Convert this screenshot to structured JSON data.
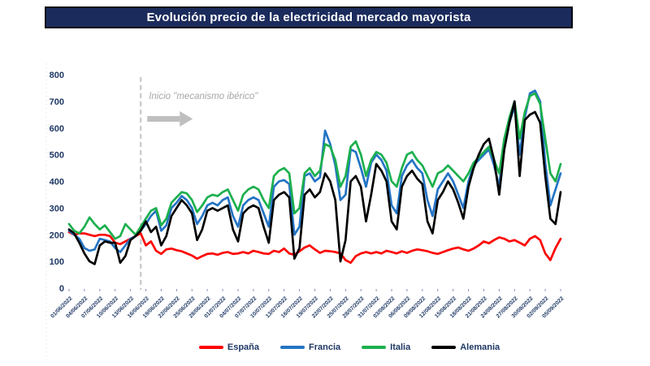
{
  "title": "Evolución precio de la electricidad mercado mayorista",
  "annotation": {
    "text": "Inicio \"mecanismo ibérico\"",
    "at_date": "15/06/2022"
  },
  "colors": {
    "title_bg": "#1b2b5c",
    "title_text": "#ffffff",
    "axis_text": "#1f3864",
    "tick_mark": "#8496b8",
    "annotation_text": "#a6a6a6",
    "arrow": "#bfbfbf",
    "dashed_line": "#c9c9c9",
    "left_guide": "#e2e6f0",
    "espana": "#fe0000",
    "francia": "#2474c4",
    "italia": "#1cb04e",
    "alemania": "#000000"
  },
  "chart_data": {
    "type": "line",
    "title": "Evolución precio de la electricidad mercado mayorista",
    "xlabel": "",
    "ylabel": "",
    "ylim": [
      0,
      800
    ],
    "yticks": [
      0,
      100,
      200,
      300,
      400,
      500,
      600,
      700,
      800
    ],
    "grid": false,
    "legend_position": "bottom",
    "x_tick_labels": [
      "01/06/2022",
      "04/06/2022",
      "07/06/2022",
      "10/06/2022",
      "13/06/2022",
      "16/06/2022",
      "19/06/2022",
      "22/06/2022",
      "25/06/2022",
      "28/06/2022",
      "01/07/2022",
      "04/07/2022",
      "07/07/2022",
      "10/07/2022",
      "13/07/2022",
      "16/07/2022",
      "19/07/2022",
      "22/07/2022",
      "25/07/2022",
      "28/07/2022",
      "31/07/2022",
      "03/08/2022",
      "06/08/2022",
      "09/08/2022",
      "12/08/2022",
      "15/08/2022",
      "18/08/2022",
      "21/08/2022",
      "24/08/2022",
      "27/08/2022",
      "30/08/2022",
      "02/09/2022",
      "05/09/2022"
    ],
    "x_dates": [
      "01/06/2022",
      "02/06/2022",
      "03/06/2022",
      "04/06/2022",
      "05/06/2022",
      "06/06/2022",
      "07/06/2022",
      "08/06/2022",
      "09/06/2022",
      "10/06/2022",
      "11/06/2022",
      "12/06/2022",
      "13/06/2022",
      "14/06/2022",
      "15/06/2022",
      "16/06/2022",
      "17/06/2022",
      "18/06/2022",
      "19/06/2022",
      "20/06/2022",
      "21/06/2022",
      "22/06/2022",
      "23/06/2022",
      "24/06/2022",
      "25/06/2022",
      "26/06/2022",
      "27/06/2022",
      "28/06/2022",
      "29/06/2022",
      "30/06/2022",
      "01/07/2022",
      "02/07/2022",
      "03/07/2022",
      "04/07/2022",
      "05/07/2022",
      "06/07/2022",
      "07/07/2022",
      "08/07/2022",
      "09/07/2022",
      "10/07/2022",
      "11/07/2022",
      "12/07/2022",
      "13/07/2022",
      "14/07/2022",
      "15/07/2022",
      "16/07/2022",
      "17/07/2022",
      "18/07/2022",
      "19/07/2022",
      "20/07/2022",
      "21/07/2022",
      "22/07/2022",
      "23/07/2022",
      "24/07/2022",
      "25/07/2022",
      "26/07/2022",
      "27/07/2022",
      "28/07/2022",
      "29/07/2022",
      "30/07/2022",
      "31/07/2022",
      "01/08/2022",
      "02/08/2022",
      "03/08/2022",
      "04/08/2022",
      "05/08/2022",
      "06/08/2022",
      "07/08/2022",
      "08/08/2022",
      "09/08/2022",
      "10/08/2022",
      "11/08/2022",
      "12/08/2022",
      "13/08/2022",
      "14/08/2022",
      "15/08/2022",
      "16/08/2022",
      "17/08/2022",
      "18/08/2022",
      "19/08/2022",
      "20/08/2022",
      "21/08/2022",
      "22/08/2022",
      "23/08/2022",
      "24/08/2022",
      "25/08/2022",
      "26/08/2022",
      "27/08/2022",
      "28/08/2022",
      "29/08/2022",
      "30/08/2022",
      "31/08/2022",
      "01/09/2022",
      "02/09/2022",
      "03/09/2022",
      "04/09/2022",
      "05/09/2022"
    ],
    "series": [
      {
        "name": "España",
        "color_key": "espana",
        "values": [
          210,
          200,
          205,
          205,
          200,
          195,
          200,
          200,
          195,
          170,
          165,
          175,
          185,
          195,
          205,
          160,
          175,
          140,
          128,
          145,
          148,
          142,
          138,
          130,
          122,
          110,
          120,
          128,
          130,
          125,
          132,
          135,
          128,
          130,
          135,
          130,
          140,
          135,
          130,
          128,
          140,
          135,
          148,
          130,
          125,
          138,
          152,
          160,
          145,
          132,
          140,
          138,
          135,
          130,
          105,
          95,
          120,
          130,
          135,
          130,
          135,
          130,
          140,
          135,
          130,
          138,
          132,
          140,
          145,
          142,
          138,
          132,
          128,
          135,
          142,
          148,
          152,
          145,
          140,
          148,
          160,
          175,
          168,
          180,
          190,
          185,
          175,
          180,
          170,
          160,
          185,
          195,
          180,
          130,
          105,
          150,
          185
        ]
      },
      {
        "name": "Francia",
        "color_key": "francia",
        "values": [
          215,
          200,
          185,
          150,
          140,
          145,
          185,
          180,
          175,
          150,
          135,
          160,
          185,
          195,
          215,
          240,
          270,
          290,
          215,
          235,
          300,
          320,
          345,
          330,
          300,
          240,
          270,
          310,
          320,
          310,
          330,
          340,
          270,
          230,
          310,
          330,
          340,
          330,
          280,
          230,
          380,
          400,
          405,
          390,
          200,
          230,
          420,
          430,
          400,
          415,
          590,
          540,
          460,
          330,
          350,
          520,
          510,
          450,
          380,
          470,
          500,
          480,
          440,
          310,
          280,
          420,
          460,
          480,
          450,
          430,
          330,
          270,
          370,
          400,
          430,
          400,
          350,
          300,
          400,
          460,
          480,
          500,
          520,
          460,
          380,
          560,
          620,
          680,
          500,
          640,
          730,
          740,
          700,
          470,
          310,
          370,
          430
        ]
      },
      {
        "name": "Italia",
        "color_key": "italia",
        "values": [
          240,
          215,
          205,
          230,
          265,
          240,
          220,
          235,
          210,
          185,
          195,
          240,
          220,
          200,
          230,
          260,
          290,
          300,
          235,
          260,
          320,
          340,
          360,
          355,
          330,
          285,
          310,
          340,
          350,
          345,
          360,
          370,
          330,
          290,
          350,
          370,
          380,
          370,
          330,
          300,
          420,
          440,
          450,
          430,
          280,
          300,
          430,
          450,
          420,
          440,
          540,
          530,
          480,
          380,
          420,
          530,
          550,
          500,
          420,
          480,
          510,
          500,
          470,
          400,
          380,
          450,
          500,
          510,
          480,
          460,
          420,
          380,
          430,
          440,
          460,
          440,
          420,
          400,
          430,
          470,
          490,
          510,
          530,
          480,
          430,
          560,
          640,
          700,
          560,
          660,
          720,
          730,
          690,
          560,
          430,
          400,
          465
        ]
      },
      {
        "name": "Alemania",
        "color_key": "alemania",
        "values": [
          220,
          205,
          170,
          130,
          100,
          90,
          160,
          175,
          170,
          170,
          95,
          120,
          180,
          195,
          215,
          250,
          210,
          230,
          160,
          195,
          270,
          300,
          330,
          310,
          280,
          180,
          220,
          290,
          300,
          290,
          300,
          310,
          220,
          175,
          280,
          300,
          310,
          300,
          230,
          170,
          330,
          350,
          360,
          340,
          110,
          150,
          350,
          370,
          340,
          360,
          430,
          400,
          330,
          100,
          180,
          400,
          420,
          380,
          250,
          350,
          465,
          440,
          400,
          250,
          220,
          380,
          420,
          440,
          410,
          390,
          250,
          205,
          330,
          360,
          400,
          370,
          320,
          260,
          380,
          450,
          500,
          540,
          560,
          480,
          350,
          520,
          620,
          700,
          420,
          630,
          650,
          660,
          620,
          420,
          260,
          240,
          360
        ]
      }
    ]
  }
}
